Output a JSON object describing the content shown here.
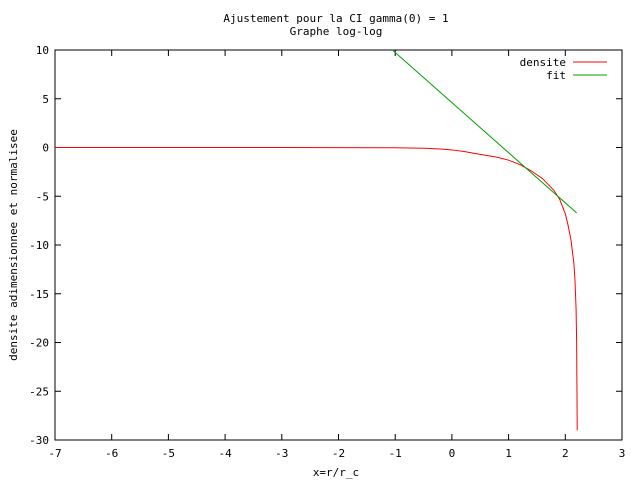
{
  "chart_data": {
    "type": "line",
    "title": "Ajustement pour la CI gamma(0) = 1",
    "subtitle": "Graphe log-log",
    "xlabel": "x=r/r_c",
    "ylabel": "densite adimensionnee et normalisee",
    "xlim": [
      -7,
      3
    ],
    "ylim": [
      -30,
      10
    ],
    "xticks": [
      -7,
      -6,
      -5,
      -4,
      -3,
      -2,
      -1,
      0,
      1,
      2,
      3
    ],
    "yticks": [
      -30,
      -25,
      -20,
      -15,
      -10,
      -5,
      0,
      5,
      10
    ],
    "grid": false,
    "legend_position": "top-right",
    "series": [
      {
        "name": "densite",
        "color": "#ff0000",
        "x": [
          -7,
          -3,
          -1,
          -0.5,
          -0.2,
          0,
          0.2,
          0.5,
          0.8,
          1.0,
          1.2,
          1.4,
          1.6,
          1.8,
          1.9,
          2.0,
          2.05,
          2.1,
          2.15,
          2.17,
          2.19,
          2.2,
          2.21
        ],
        "y": [
          0,
          0,
          -0.03,
          -0.08,
          -0.15,
          -0.25,
          -0.4,
          -0.7,
          -1.0,
          -1.3,
          -1.75,
          -2.4,
          -3.2,
          -4.4,
          -5.3,
          -6.8,
          -8.0,
          -9.5,
          -11.8,
          -13.5,
          -16.5,
          -20,
          -29
        ]
      },
      {
        "name": "fit",
        "color": "#00a000",
        "x": [
          -1.05,
          2.2
        ],
        "y": [
          10,
          -6.7
        ]
      }
    ]
  }
}
